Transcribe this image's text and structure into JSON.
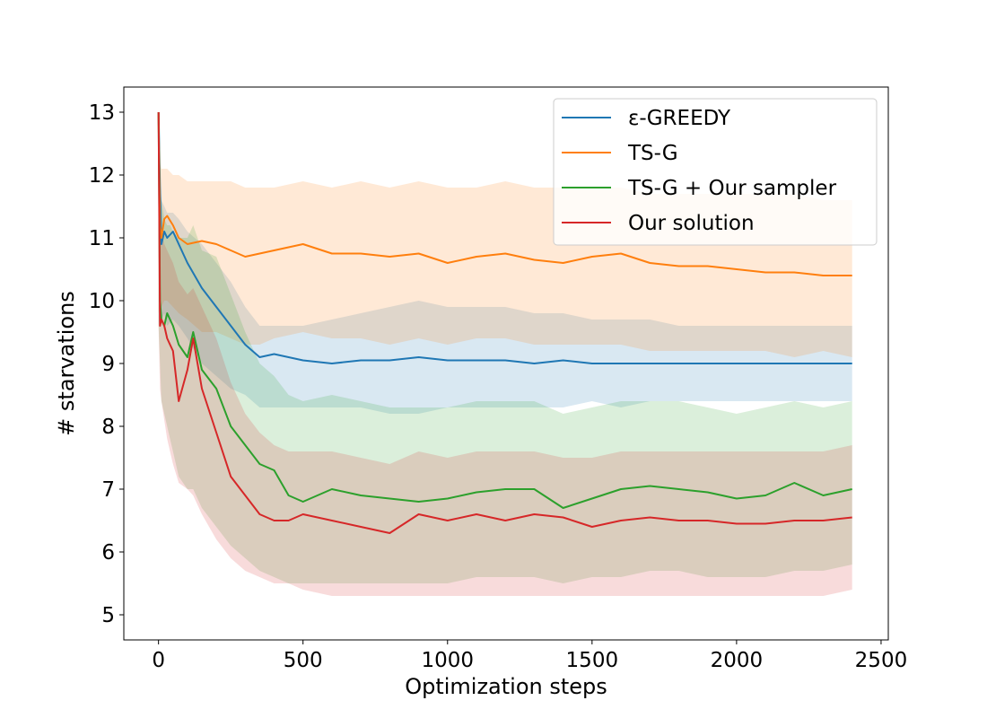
{
  "chart_data": {
    "type": "line",
    "xlabel": "Optimization steps",
    "ylabel": "# starvations",
    "xlim": [
      -120,
      2525
    ],
    "ylim": [
      4.6,
      13.4
    ],
    "xticks": [
      0,
      500,
      1000,
      1500,
      2000,
      2500
    ],
    "yticks": [
      5,
      6,
      7,
      8,
      9,
      10,
      11,
      12,
      13
    ],
    "grid": false,
    "legend_position": "top-right",
    "series": [
      {
        "name": "ε-GREEDY",
        "color": "#1f77b4",
        "x": [
          0,
          5,
          10,
          20,
          30,
          50,
          70,
          100,
          150,
          200,
          250,
          300,
          350,
          400,
          500,
          600,
          700,
          800,
          900,
          1000,
          1100,
          1200,
          1300,
          1400,
          1500,
          1600,
          1700,
          1800,
          1900,
          2000,
          2100,
          2200,
          2300,
          2400
        ],
        "y": [
          13.0,
          11.8,
          10.9,
          11.1,
          11.0,
          11.1,
          10.9,
          10.6,
          10.2,
          9.9,
          9.6,
          9.3,
          9.1,
          9.15,
          9.05,
          9.0,
          9.05,
          9.05,
          9.1,
          9.05,
          9.05,
          9.05,
          9.0,
          9.05,
          9.0,
          9.0,
          9.0,
          9.0,
          9.0,
          9.0,
          9.0,
          9.0,
          9.0,
          9.0
        ],
        "lower": [
          9.6,
          9.8,
          9.7,
          9.8,
          9.6,
          9.7,
          9.6,
          9.4,
          9.0,
          8.8,
          8.6,
          8.5,
          8.3,
          8.3,
          8.3,
          8.3,
          8.3,
          8.2,
          8.2,
          8.3,
          8.3,
          8.3,
          8.3,
          8.3,
          8.4,
          8.3,
          8.4,
          8.4,
          8.4,
          8.4,
          8.4,
          8.4,
          8.4,
          8.4
        ],
        "upper": [
          13.0,
          12.0,
          11.6,
          11.5,
          11.4,
          11.4,
          11.3,
          11.1,
          10.9,
          10.6,
          10.3,
          9.9,
          9.6,
          9.6,
          9.6,
          9.7,
          9.8,
          9.9,
          10.0,
          9.9,
          9.9,
          9.9,
          9.8,
          9.8,
          9.7,
          9.7,
          9.7,
          9.6,
          9.6,
          9.6,
          9.6,
          9.6,
          9.6,
          9.6
        ]
      },
      {
        "name": "TS-G",
        "color": "#ff7f0e",
        "x": [
          0,
          5,
          10,
          20,
          30,
          50,
          70,
          100,
          150,
          200,
          250,
          300,
          350,
          400,
          500,
          600,
          700,
          800,
          900,
          1000,
          1100,
          1200,
          1300,
          1400,
          1500,
          1600,
          1700,
          1800,
          1900,
          2000,
          2100,
          2200,
          2300,
          2400
        ],
        "y": [
          13.0,
          11.2,
          11.0,
          11.3,
          11.35,
          11.2,
          11.0,
          10.9,
          10.95,
          10.9,
          10.8,
          10.7,
          10.75,
          10.8,
          10.9,
          10.75,
          10.75,
          10.7,
          10.75,
          10.6,
          10.7,
          10.75,
          10.65,
          10.6,
          10.7,
          10.75,
          10.6,
          10.55,
          10.55,
          10.5,
          10.45,
          10.45,
          10.4,
          10.4
        ],
        "lower": [
          9.8,
          9.9,
          9.9,
          10.0,
          10.0,
          9.9,
          9.8,
          9.7,
          9.5,
          9.5,
          9.4,
          9.3,
          9.3,
          9.4,
          9.5,
          9.4,
          9.4,
          9.3,
          9.4,
          9.3,
          9.4,
          9.4,
          9.3,
          9.3,
          9.3,
          9.3,
          9.2,
          9.2,
          9.2,
          9.2,
          9.2,
          9.1,
          9.2,
          9.1
        ],
        "upper": [
          13.0,
          12.2,
          12.1,
          12.1,
          12.1,
          12.0,
          12.0,
          11.9,
          11.9,
          11.9,
          11.9,
          11.8,
          11.8,
          11.8,
          11.9,
          11.8,
          11.9,
          11.8,
          11.9,
          11.8,
          11.8,
          11.9,
          11.8,
          11.8,
          11.8,
          11.8,
          11.7,
          11.7,
          11.7,
          11.7,
          11.7,
          11.7,
          11.6,
          11.6
        ]
      },
      {
        "name": "TS-G + Our sampler",
        "color": "#2ca02c",
        "x": [
          0,
          5,
          10,
          20,
          30,
          40,
          50,
          70,
          100,
          120,
          150,
          200,
          250,
          300,
          350,
          400,
          450,
          500,
          600,
          700,
          800,
          900,
          1000,
          1100,
          1200,
          1300,
          1400,
          1500,
          1600,
          1700,
          1800,
          1900,
          2000,
          2100,
          2200,
          2300,
          2400
        ],
        "y": [
          13.0,
          10.0,
          9.7,
          9.6,
          9.8,
          9.7,
          9.6,
          9.3,
          9.1,
          9.5,
          8.9,
          8.6,
          8.0,
          7.7,
          7.4,
          7.3,
          6.9,
          6.8,
          7.0,
          6.9,
          6.85,
          6.8,
          6.85,
          6.95,
          7.0,
          7.0,
          6.7,
          6.85,
          7.0,
          7.05,
          7.0,
          6.95,
          6.85,
          6.9,
          7.1,
          6.9,
          7.0
        ],
        "lower": [
          9.6,
          9.0,
          8.4,
          8.2,
          8.0,
          7.8,
          7.6,
          7.2,
          7.0,
          7.0,
          6.7,
          6.4,
          6.1,
          5.9,
          5.7,
          5.6,
          5.5,
          5.5,
          5.5,
          5.5,
          5.5,
          5.5,
          5.5,
          5.6,
          5.6,
          5.6,
          5.5,
          5.6,
          5.6,
          5.7,
          5.7,
          5.6,
          5.6,
          5.6,
          5.7,
          5.7,
          5.8
        ],
        "upper": [
          13.0,
          11.8,
          11.6,
          11.3,
          11.2,
          11.2,
          11.1,
          11.0,
          11.0,
          11.2,
          10.8,
          10.7,
          10.1,
          9.5,
          9.0,
          8.8,
          8.5,
          8.4,
          8.5,
          8.4,
          8.3,
          8.3,
          8.3,
          8.4,
          8.4,
          8.4,
          8.2,
          8.3,
          8.4,
          8.4,
          8.4,
          8.3,
          8.2,
          8.3,
          8.4,
          8.3,
          8.4
        ]
      },
      {
        "name": "Our solution",
        "color": "#d62728",
        "x": [
          0,
          5,
          10,
          20,
          30,
          40,
          50,
          70,
          100,
          120,
          150,
          200,
          250,
          300,
          350,
          400,
          450,
          500,
          600,
          700,
          800,
          900,
          1000,
          1100,
          1200,
          1300,
          1400,
          1500,
          1600,
          1700,
          1800,
          1900,
          2000,
          2100,
          2200,
          2300,
          2400
        ],
        "y": [
          13.0,
          9.6,
          9.7,
          9.6,
          9.4,
          9.3,
          9.2,
          8.4,
          8.9,
          9.4,
          8.6,
          7.9,
          7.2,
          6.9,
          6.6,
          6.5,
          6.5,
          6.6,
          6.5,
          6.4,
          6.3,
          6.6,
          6.5,
          6.6,
          6.5,
          6.6,
          6.55,
          6.4,
          6.5,
          6.55,
          6.5,
          6.5,
          6.45,
          6.45,
          6.5,
          6.5,
          6.55
        ],
        "lower": [
          9.6,
          8.6,
          8.4,
          8.1,
          7.8,
          7.6,
          7.4,
          7.1,
          7.0,
          6.9,
          6.6,
          6.2,
          5.9,
          5.7,
          5.6,
          5.5,
          5.5,
          5.4,
          5.3,
          5.3,
          5.3,
          5.3,
          5.3,
          5.3,
          5.3,
          5.3,
          5.3,
          5.3,
          5.3,
          5.3,
          5.3,
          5.3,
          5.3,
          5.3,
          5.3,
          5.3,
          5.4
        ],
        "upper": [
          13.0,
          11.3,
          11.1,
          10.9,
          10.8,
          10.7,
          10.6,
          10.3,
          10.1,
          10.2,
          9.9,
          9.4,
          8.7,
          8.2,
          7.9,
          7.7,
          7.6,
          7.6,
          7.6,
          7.5,
          7.4,
          7.6,
          7.5,
          7.6,
          7.6,
          7.6,
          7.5,
          7.5,
          7.6,
          7.6,
          7.6,
          7.6,
          7.6,
          7.6,
          7.6,
          7.6,
          7.7
        ]
      }
    ]
  }
}
